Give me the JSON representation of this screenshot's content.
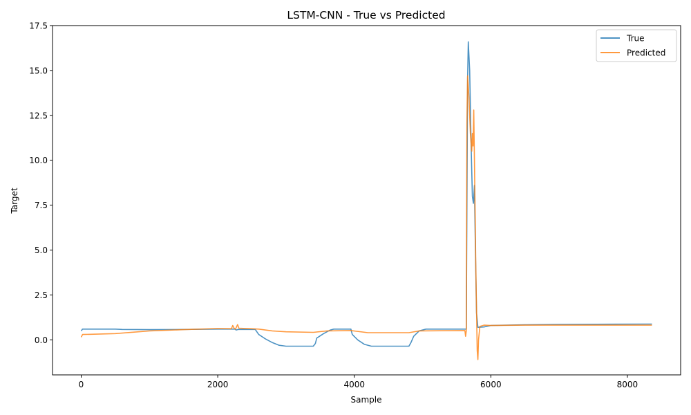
{
  "chart_data": {
    "type": "line",
    "title": "LSTM-CNN - True vs Predicted",
    "xlabel": "Sample",
    "ylabel": "Target",
    "xlim": [
      -420,
      8780
    ],
    "ylim": [
      -1.95,
      17.5
    ],
    "xticks": [
      0,
      2000,
      4000,
      6000,
      8000
    ],
    "xtick_labels": [
      "0",
      "2000",
      "4000",
      "6000",
      "8000"
    ],
    "yticks": [
      0.0,
      2.5,
      5.0,
      7.5,
      10.0,
      12.5,
      15.0,
      17.5
    ],
    "ytick_labels": [
      "0.0",
      "2.5",
      "5.0",
      "7.5",
      "10.0",
      "12.5",
      "15.0",
      "17.5"
    ],
    "grid": false,
    "legend_position": "top-right",
    "series": [
      {
        "name": "True",
        "color": "#1f77b4",
        "points": [
          [
            0,
            0.5
          ],
          [
            20,
            0.6
          ],
          [
            500,
            0.6
          ],
          [
            600,
            0.58
          ],
          [
            1000,
            0.57
          ],
          [
            1500,
            0.58
          ],
          [
            2000,
            0.6
          ],
          [
            2250,
            0.6
          ],
          [
            2270,
            0.55
          ],
          [
            2300,
            0.58
          ],
          [
            2550,
            0.58
          ],
          [
            2600,
            0.3
          ],
          [
            2700,
            0.05
          ],
          [
            2800,
            -0.15
          ],
          [
            2900,
            -0.3
          ],
          [
            3000,
            -0.35
          ],
          [
            3400,
            -0.35
          ],
          [
            3430,
            -0.2
          ],
          [
            3450,
            0.1
          ],
          [
            3550,
            0.35
          ],
          [
            3650,
            0.55
          ],
          [
            3700,
            0.6
          ],
          [
            3950,
            0.6
          ],
          [
            3970,
            0.3
          ],
          [
            4050,
            0.0
          ],
          [
            4150,
            -0.25
          ],
          [
            4250,
            -0.35
          ],
          [
            4800,
            -0.35
          ],
          [
            4830,
            -0.15
          ],
          [
            4870,
            0.2
          ],
          [
            4950,
            0.5
          ],
          [
            5050,
            0.6
          ],
          [
            5640,
            0.6
          ],
          [
            5660,
            14.5
          ],
          [
            5670,
            16.6
          ],
          [
            5690,
            15.0
          ],
          [
            5710,
            11.0
          ],
          [
            5730,
            8.0
          ],
          [
            5745,
            7.6
          ],
          [
            5760,
            8.6
          ],
          [
            5770,
            6.0
          ],
          [
            5790,
            1.5
          ],
          [
            5810,
            0.7
          ],
          [
            5900,
            0.72
          ],
          [
            6000,
            0.8
          ],
          [
            6500,
            0.84
          ],
          [
            7000,
            0.86
          ],
          [
            8360,
            0.88
          ]
        ]
      },
      {
        "name": "Predicted",
        "color": "#ff7f0e",
        "points": [
          [
            0,
            0.15
          ],
          [
            20,
            0.3
          ],
          [
            500,
            0.35
          ],
          [
            1000,
            0.5
          ],
          [
            1500,
            0.57
          ],
          [
            2000,
            0.63
          ],
          [
            2200,
            0.62
          ],
          [
            2220,
            0.8
          ],
          [
            2240,
            0.65
          ],
          [
            2260,
            0.6
          ],
          [
            2290,
            0.85
          ],
          [
            2310,
            0.65
          ],
          [
            2500,
            0.62
          ],
          [
            2600,
            0.6
          ],
          [
            2800,
            0.5
          ],
          [
            3000,
            0.45
          ],
          [
            3400,
            0.42
          ],
          [
            3600,
            0.5
          ],
          [
            3950,
            0.52
          ],
          [
            4200,
            0.4
          ],
          [
            4800,
            0.4
          ],
          [
            4950,
            0.5
          ],
          [
            5620,
            0.52
          ],
          [
            5630,
            0.2
          ],
          [
            5640,
            0.5
          ],
          [
            5650,
            12.0
          ],
          [
            5660,
            14.7
          ],
          [
            5680,
            13.5
          ],
          [
            5700,
            11.5
          ],
          [
            5720,
            10.5
          ],
          [
            5730,
            11.5
          ],
          [
            5740,
            10.8
          ],
          [
            5750,
            12.8
          ],
          [
            5760,
            10.0
          ],
          [
            5780,
            4.0
          ],
          [
            5800,
            -0.6
          ],
          [
            5810,
            -1.1
          ],
          [
            5820,
            0.0
          ],
          [
            5840,
            0.75
          ],
          [
            5900,
            0.82
          ],
          [
            6000,
            0.8
          ],
          [
            6500,
            0.82
          ],
          [
            7000,
            0.82
          ],
          [
            8360,
            0.82
          ]
        ]
      }
    ]
  }
}
